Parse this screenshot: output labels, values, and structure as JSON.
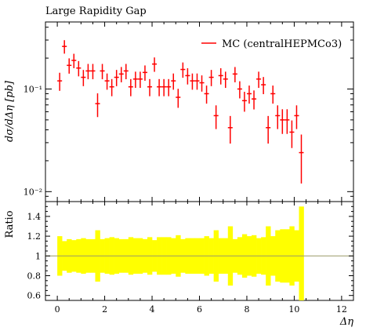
{
  "chart_data": {
    "type": "scatter",
    "title": "Large Rapidity Gap",
    "xlabel": "Δη",
    "ylabel": "dσ/dΔη [pb]",
    "xlim": [
      -0.5,
      12.5
    ],
    "yscale": "log",
    "ylim": [
      0.008,
      0.45
    ],
    "xticks": [
      0,
      2,
      4,
      6,
      8,
      10,
      12
    ],
    "yticks": [
      {
        "value": 0.1,
        "label": "10⁻¹"
      },
      {
        "value": 0.01,
        "label": "10⁻²"
      }
    ],
    "grid": false,
    "legend_position": "top-right",
    "colors": {
      "series": "#ff0000",
      "band": "#ffff00",
      "ratio_line": "#999966"
    },
    "series": [
      {
        "name": "MC (centralHEPMCo3)",
        "x": [
          0.1,
          0.3,
          0.5,
          0.7,
          0.9,
          1.1,
          1.3,
          1.5,
          1.7,
          1.9,
          2.1,
          2.3,
          2.5,
          2.7,
          2.9,
          3.1,
          3.3,
          3.5,
          3.7,
          3.9,
          4.1,
          4.3,
          4.5,
          4.7,
          4.9,
          5.1,
          5.3,
          5.5,
          5.7,
          5.9,
          6.1,
          6.3,
          6.5,
          6.7,
          6.9,
          7.1,
          7.3,
          7.5,
          7.7,
          7.9,
          8.1,
          8.3,
          8.5,
          8.7,
          8.9,
          9.1,
          9.3,
          9.5,
          9.7,
          9.9,
          10.1,
          10.3
        ],
        "y": [
          0.12,
          0.26,
          0.17,
          0.19,
          0.16,
          0.13,
          0.15,
          0.15,
          0.072,
          0.15,
          0.12,
          0.105,
          0.13,
          0.14,
          0.15,
          0.105,
          0.125,
          0.125,
          0.145,
          0.105,
          0.175,
          0.105,
          0.105,
          0.105,
          0.12,
          0.083,
          0.155,
          0.135,
          0.12,
          0.12,
          0.115,
          0.09,
          0.13,
          0.055,
          0.135,
          0.125,
          0.042,
          0.14,
          0.1,
          0.077,
          0.09,
          0.08,
          0.125,
          0.11,
          0.042,
          0.09,
          0.055,
          0.05,
          0.05,
          0.038,
          0.055,
          0.024
        ],
        "yerr": [
          0.2,
          0.15,
          0.17,
          0.16,
          0.17,
          0.18,
          0.17,
          0.17,
          0.26,
          0.17,
          0.18,
          0.19,
          0.18,
          0.17,
          0.17,
          0.19,
          0.18,
          0.18,
          0.17,
          0.19,
          0.16,
          0.19,
          0.19,
          0.19,
          0.18,
          0.21,
          0.17,
          0.18,
          0.18,
          0.18,
          0.18,
          0.2,
          0.18,
          0.26,
          0.18,
          0.18,
          0.3,
          0.17,
          0.19,
          0.22,
          0.2,
          0.21,
          0.18,
          0.19,
          0.3,
          0.2,
          0.26,
          0.27,
          0.27,
          0.3,
          0.26,
          0.5
        ]
      }
    ],
    "ratio_panel": {
      "ylabel": "Ratio",
      "ylim": [
        0.55,
        1.55
      ],
      "yticks": [
        {
          "value": 0.6,
          "label": "0.6"
        },
        {
          "value": 0.8,
          "label": "0.8"
        },
        {
          "value": 1.0,
          "label": "1"
        },
        {
          "value": 1.2,
          "label": "1.2"
        },
        {
          "value": 1.4,
          "label": "1.4"
        }
      ],
      "reference": 1.0
    }
  }
}
